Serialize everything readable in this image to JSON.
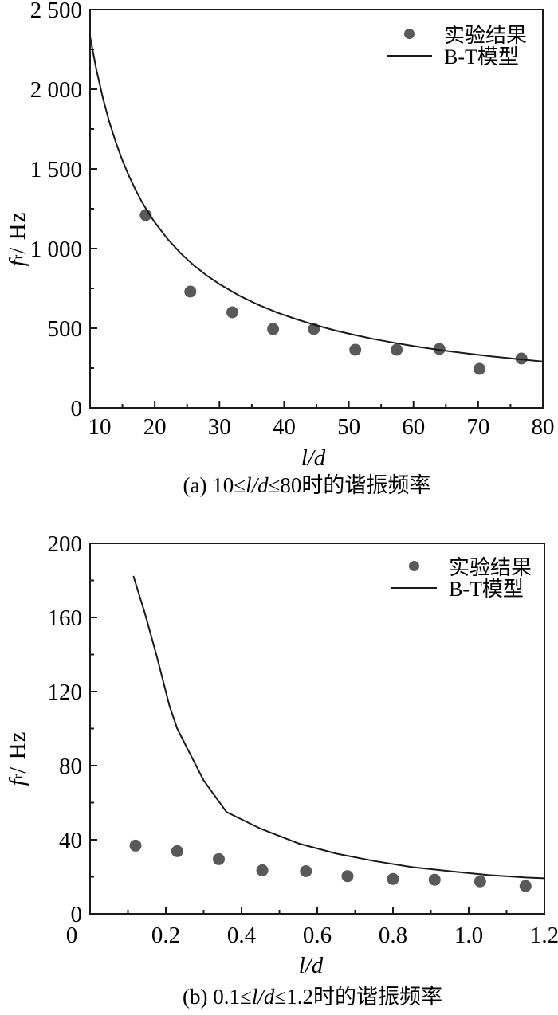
{
  "page": {
    "background": "#ffffff"
  },
  "colors": {
    "axis": "#1a1a1a",
    "line": "#1a1a1a",
    "dot": "#595959",
    "text": "#000000"
  },
  "chart_data": [
    {
      "panel": "a",
      "type": "scatter+line",
      "caption_prefix": "(a) 10≤",
      "caption_italic": "l/d",
      "caption_suffix": "≤80时的谐振频率",
      "xlabel": "l/d",
      "ylabel_main": "f",
      "ylabel_sub": "r",
      "ylabel_rest": " / Hz",
      "xlim": [
        10,
        80
      ],
      "ylim": [
        0,
        2500
      ],
      "x_ticks": {
        "major": [
          10,
          20,
          30,
          40,
          50,
          60,
          70,
          80
        ],
        "labels": [
          "10",
          "20",
          "30",
          "40",
          "50",
          "60",
          "70",
          "80"
        ],
        "label_dx": [
          12,
          0,
          0,
          0,
          0,
          0,
          0,
          0
        ],
        "minor": [
          15,
          25,
          35,
          45,
          55,
          65,
          75
        ]
      },
      "y_ticks": {
        "major": [
          0,
          500,
          1000,
          1500,
          2000,
          2500
        ],
        "labels": [
          "0",
          "500",
          "1 000",
          "1 500",
          "2 000",
          "2 500"
        ],
        "minor": [
          250,
          750,
          1250,
          1750,
          2250
        ]
      },
      "legend": [
        {
          "marker": "dot",
          "label": "实验结果"
        },
        {
          "marker": "line",
          "label": "B-T模型"
        }
      ],
      "series": [
        {
          "name": "实验结果",
          "type": "scatter",
          "points": [
            [
              18.6,
              1210
            ],
            [
              25.5,
              730
            ],
            [
              32,
              600
            ],
            [
              38.3,
              495
            ],
            [
              44.6,
              495
            ],
            [
              51,
              365
            ],
            [
              57.4,
              365
            ],
            [
              64,
              370
            ],
            [
              70.2,
              245
            ],
            [
              76.7,
              310
            ]
          ]
        },
        {
          "name": "B-T模型",
          "type": "line",
          "points": [
            [
              10,
              2330
            ],
            [
              11,
              2118
            ],
            [
              12,
              1942
            ],
            [
              13,
              1792
            ],
            [
              14,
              1664
            ],
            [
              15,
              1553
            ],
            [
              16,
              1456
            ],
            [
              17,
              1371
            ],
            [
              18,
              1294
            ],
            [
              19,
              1226
            ],
            [
              20,
              1165
            ],
            [
              22,
              1059
            ],
            [
              24,
              971
            ],
            [
              26,
              896
            ],
            [
              28,
              832
            ],
            [
              30,
              777
            ],
            [
              33,
              706
            ],
            [
              36,
              647
            ],
            [
              39,
              597
            ],
            [
              42,
              555
            ],
            [
              45,
              518
            ],
            [
              48,
              485
            ],
            [
              51,
              457
            ],
            [
              54,
              431
            ],
            [
              57,
              409
            ],
            [
              60,
              388
            ],
            [
              64,
              364
            ],
            [
              68,
              343
            ],
            [
              72,
              324
            ],
            [
              76,
              307
            ],
            [
              80,
              291
            ]
          ]
        }
      ]
    },
    {
      "panel": "b",
      "type": "scatter+line",
      "caption_prefix": "(b) 0.1≤",
      "caption_italic": "l/d",
      "caption_suffix": "≤1.2时的谐振频率",
      "xlabel": "l/d",
      "ylabel_main": "f",
      "ylabel_sub": "r",
      "ylabel_rest": " / Hz",
      "xlim": [
        0,
        1.2
      ],
      "ylim": [
        0,
        200
      ],
      "x_ticks": {
        "major": [
          0,
          0.2,
          0.4,
          0.6,
          0.8,
          1.0,
          1.2
        ],
        "labels": [
          "0",
          "0.2",
          "0.4",
          "0.6",
          "0.8",
          "1.0",
          "1.2"
        ],
        "label_dx": [
          -23,
          0,
          0,
          0,
          0,
          0,
          0
        ],
        "minor": [
          0.1,
          0.3,
          0.5,
          0.7,
          0.9,
          1.1
        ]
      },
      "y_ticks": {
        "major": [
          0,
          40,
          80,
          120,
          160,
          200
        ],
        "labels": [
          "0",
          "40",
          "80",
          "120",
          "160",
          "200"
        ],
        "minor": [
          20,
          60,
          100,
          140,
          180
        ]
      },
      "legend": [
        {
          "marker": "dot",
          "label": "实验结果"
        },
        {
          "marker": "line",
          "label": "B-T模型"
        }
      ],
      "series": [
        {
          "name": "实验结果",
          "type": "scatter",
          "points": [
            [
              0.12,
              36.8
            ],
            [
              0.23,
              33.8
            ],
            [
              0.34,
              29.5
            ],
            [
              0.455,
              23.5
            ],
            [
              0.57,
              23
            ],
            [
              0.68,
              20.3
            ],
            [
              0.8,
              18.8
            ],
            [
              0.91,
              18.4
            ],
            [
              1.03,
              17.5
            ],
            [
              1.15,
              15
            ]
          ]
        },
        {
          "name": "B-T模型",
          "type": "line",
          "points": [
            [
              0.115,
              182
            ],
            [
              0.145,
              162
            ],
            [
              0.175,
              140
            ],
            [
              0.21,
              112
            ],
            [
              0.23,
              100
            ],
            [
              0.26,
              88
            ],
            [
              0.3,
              72
            ],
            [
              0.36,
              55
            ],
            [
              0.45,
              46
            ],
            [
              0.55,
              38
            ],
            [
              0.65,
              32.5
            ],
            [
              0.75,
              28.5
            ],
            [
              0.85,
              25.2
            ],
            [
              0.95,
              23
            ],
            [
              1.05,
              21
            ],
            [
              1.15,
              19.6
            ],
            [
              1.2,
              19.2
            ]
          ]
        }
      ]
    }
  ]
}
